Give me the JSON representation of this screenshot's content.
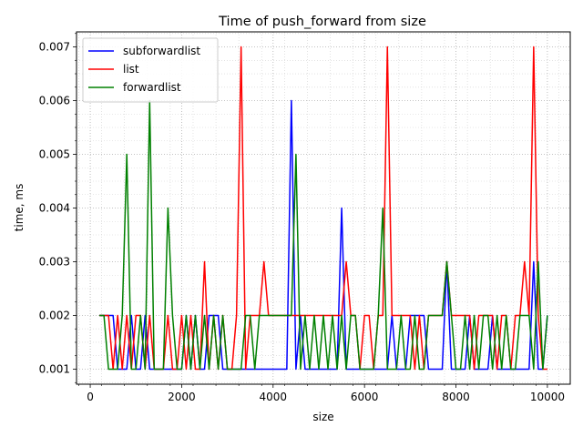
{
  "chart_data": {
    "type": "line",
    "title": "Time of push_forward from size",
    "xlabel": "size",
    "ylabel": "time, ms",
    "xlim": [
      -300,
      10500
    ],
    "ylim": [
      0.00072,
      0.00728
    ],
    "xticks": [
      0,
      2000,
      4000,
      6000,
      8000,
      10000
    ],
    "yticks": [
      0.001,
      0.002,
      0.003,
      0.004,
      0.005,
      0.006,
      0.007
    ],
    "xtick_labels": [
      "0",
      "2000",
      "4000",
      "6000",
      "8000",
      "10000"
    ],
    "ytick_labels": [
      "0.001",
      "0.002",
      "0.003",
      "0.004",
      "0.005",
      "0.006",
      "0.007"
    ],
    "grid": "major and minor, dotted",
    "legend_position": "top-left",
    "x": [
      200,
      300,
      400,
      500,
      600,
      700,
      800,
      900,
      1000,
      1100,
      1200,
      1300,
      1400,
      1500,
      1600,
      1700,
      1800,
      1900,
      2000,
      2100,
      2200,
      2300,
      2400,
      2500,
      2600,
      2700,
      2800,
      2900,
      3000,
      3100,
      3200,
      3300,
      3400,
      3500,
      3600,
      3700,
      3800,
      3900,
      4000,
      4100,
      4200,
      4300,
      4400,
      4500,
      4600,
      4700,
      4800,
      4900,
      5000,
      5100,
      5200,
      5300,
      5400,
      5500,
      5600,
      5700,
      5800,
      5900,
      6000,
      6100,
      6200,
      6300,
      6400,
      6500,
      6600,
      6700,
      6800,
      6900,
      7000,
      7100,
      7200,
      7300,
      7400,
      7500,
      7600,
      7700,
      7800,
      7900,
      8000,
      8100,
      8200,
      8300,
      8400,
      8500,
      8600,
      8700,
      8800,
      8900,
      9000,
      9100,
      9200,
      9300,
      9400,
      9500,
      9600,
      9700,
      9800,
      9900,
      10000
    ],
    "series": [
      {
        "name": "subforwardlist",
        "color": "#0000ff",
        "values": [
          0.002,
          0.002,
          0.002,
          0.002,
          0.001,
          0.001,
          0.001,
          0.002,
          0.001,
          0.001,
          0.002,
          0.001,
          0.001,
          0.001,
          0.001,
          0.001,
          0.001,
          0.001,
          0.001,
          0.002,
          0.001,
          0.002,
          0.001,
          0.001,
          0.002,
          0.002,
          0.002,
          0.001,
          0.001,
          0.001,
          0.001,
          0.001,
          0.001,
          0.001,
          0.001,
          0.001,
          0.001,
          0.001,
          0.001,
          0.001,
          0.001,
          0.001,
          0.006,
          0.001,
          0.002,
          0.001,
          0.001,
          0.001,
          0.001,
          0.001,
          0.001,
          0.001,
          0.001,
          0.004,
          0.001,
          0.001,
          0.001,
          0.001,
          0.001,
          0.001,
          0.001,
          0.001,
          0.001,
          0.001,
          0.002,
          0.001,
          0.001,
          0.001,
          0.002,
          0.002,
          0.002,
          0.002,
          0.001,
          0.001,
          0.001,
          0.001,
          0.003,
          0.001,
          0.001,
          0.001,
          0.001,
          0.002,
          0.001,
          0.001,
          0.001,
          0.001,
          0.002,
          0.001,
          0.001,
          0.001,
          0.001,
          0.001,
          0.001,
          0.001,
          0.001,
          0.003,
          0.001,
          0.001,
          0.002
        ]
      },
      {
        "name": "list",
        "color": "#ff0000",
        "values": [
          0.002,
          0.002,
          0.002,
          0.001,
          0.002,
          0.001,
          0.002,
          0.001,
          0.002,
          0.002,
          0.001,
          0.002,
          0.001,
          0.001,
          0.001,
          0.002,
          0.001,
          0.001,
          0.002,
          0.001,
          0.002,
          0.001,
          0.001,
          0.003,
          0.001,
          0.002,
          0.001,
          0.002,
          0.001,
          0.001,
          0.002,
          0.007,
          0.001,
          0.002,
          0.002,
          0.002,
          0.003,
          0.002,
          0.002,
          0.002,
          0.002,
          0.002,
          0.002,
          0.002,
          0.002,
          0.002,
          0.002,
          0.002,
          0.002,
          0.002,
          0.002,
          0.002,
          0.002,
          0.002,
          0.003,
          0.002,
          0.002,
          0.001,
          0.002,
          0.002,
          0.001,
          0.002,
          0.002,
          0.007,
          0.002,
          0.002,
          0.002,
          0.002,
          0.002,
          0.001,
          0.002,
          0.001,
          0.002,
          0.002,
          0.002,
          0.002,
          0.003,
          0.002,
          0.002,
          0.002,
          0.002,
          0.002,
          0.001,
          0.002,
          0.002,
          0.002,
          0.002,
          0.001,
          0.002,
          0.002,
          0.001,
          0.002,
          0.002,
          0.003,
          0.002,
          0.007,
          0.002,
          0.001,
          0.001
        ]
      },
      {
        "name": "forwardlist",
        "color": "#008000",
        "values": [
          0.002,
          0.002,
          0.001,
          0.001,
          0.001,
          0.002,
          0.005,
          0.001,
          0.001,
          0.002,
          0.001,
          0.006,
          0.001,
          0.001,
          0.001,
          0.004,
          0.002,
          0.001,
          0.001,
          0.002,
          0.001,
          0.002,
          0.001,
          0.002,
          0.001,
          0.002,
          0.001,
          0.002,
          0.001,
          0.001,
          0.001,
          0.001,
          0.002,
          0.002,
          0.001,
          0.002,
          0.002,
          0.002,
          0.002,
          0.002,
          0.002,
          0.002,
          0.002,
          0.005,
          0.001,
          0.002,
          0.001,
          0.002,
          0.001,
          0.002,
          0.001,
          0.002,
          0.001,
          0.002,
          0.001,
          0.002,
          0.002,
          0.001,
          0.001,
          0.001,
          0.001,
          0.002,
          0.004,
          0.001,
          0.001,
          0.001,
          0.002,
          0.001,
          0.001,
          0.002,
          0.001,
          0.001,
          0.002,
          0.002,
          0.002,
          0.002,
          0.003,
          0.002,
          0.001,
          0.001,
          0.002,
          0.001,
          0.002,
          0.001,
          0.002,
          0.002,
          0.001,
          0.002,
          0.001,
          0.002,
          0.001,
          0.001,
          0.002,
          0.002,
          0.002,
          0.001,
          0.003,
          0.001,
          0.002
        ]
      }
    ]
  }
}
